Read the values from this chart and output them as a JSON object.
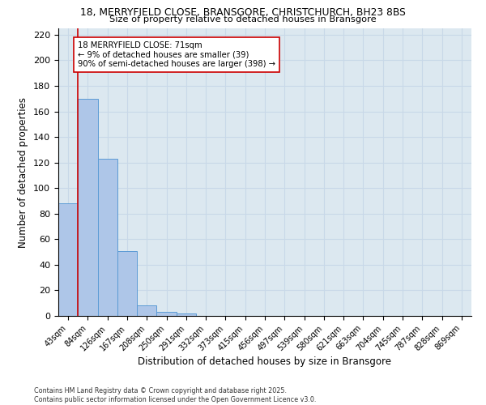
{
  "title_line1": "18, MERRYFIELD CLOSE, BRANSGORE, CHRISTCHURCH, BH23 8BS",
  "title_line2": "Size of property relative to detached houses in Bransgore",
  "xlabel": "Distribution of detached houses by size in Bransgore",
  "ylabel": "Number of detached properties",
  "categories": [
    "43sqm",
    "84sqm",
    "126sqm",
    "167sqm",
    "208sqm",
    "250sqm",
    "291sqm",
    "332sqm",
    "373sqm",
    "415sqm",
    "456sqm",
    "497sqm",
    "539sqm",
    "580sqm",
    "621sqm",
    "663sqm",
    "704sqm",
    "745sqm",
    "787sqm",
    "828sqm",
    "869sqm"
  ],
  "values": [
    88,
    170,
    123,
    51,
    8,
    3,
    2,
    0,
    0,
    0,
    0,
    0,
    0,
    0,
    0,
    0,
    0,
    0,
    0,
    0,
    0
  ],
  "bar_color": "#aec6e8",
  "bar_edgecolor": "#5b9bd5",
  "vline_color": "#cc0000",
  "vline_x": 0.5,
  "annotation_text": "18 MERRYFIELD CLOSE: 71sqm\n← 9% of detached houses are smaller (39)\n90% of semi-detached houses are larger (398) →",
  "annotation_box_edgecolor": "#cc0000",
  "ylim": [
    0,
    225
  ],
  "yticks": [
    0,
    20,
    40,
    60,
    80,
    100,
    120,
    140,
    160,
    180,
    200,
    220
  ],
  "grid_color": "#c8d8e8",
  "background_color": "#dce8f0",
  "footer_line1": "Contains HM Land Registry data © Crown copyright and database right 2025.",
  "footer_line2": "Contains public sector information licensed under the Open Government Licence v3.0."
}
